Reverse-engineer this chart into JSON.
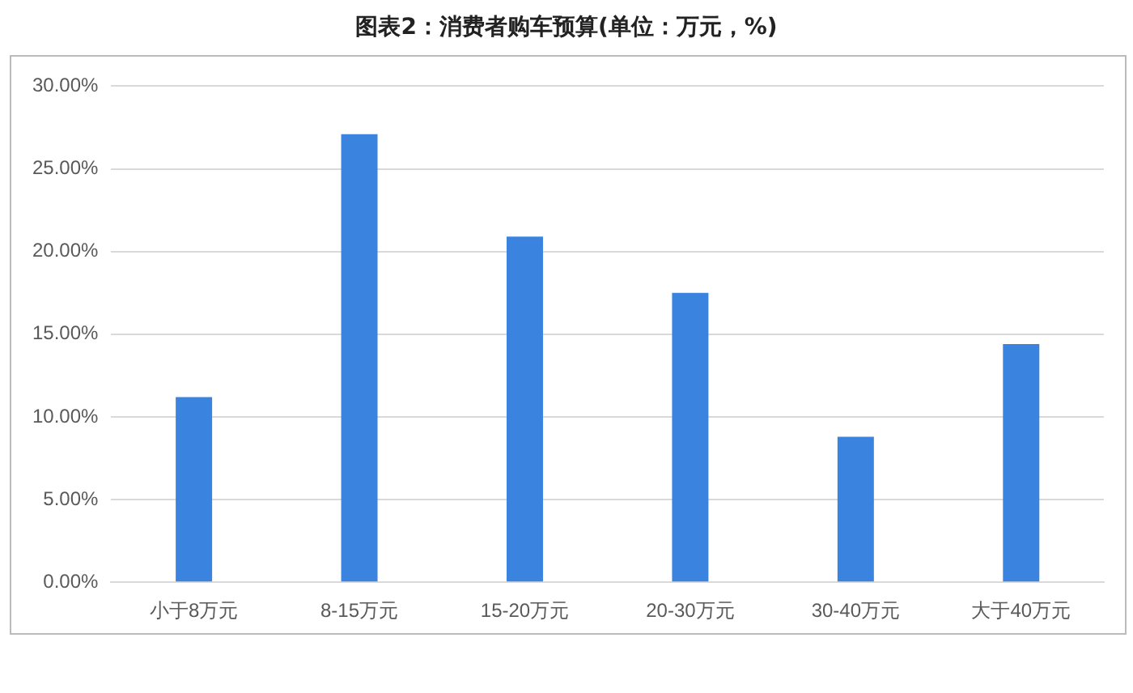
{
  "chart_data": {
    "type": "bar",
    "title": "图表2：消费者购车预算(单位：万元，%)",
    "categories": [
      "小于8万元",
      "8-15万元",
      "15-20万元",
      "20-30万元",
      "30-40万元",
      "大于40万元"
    ],
    "values": [
      11.2,
      27.1,
      20.9,
      17.5,
      8.8,
      14.4
    ],
    "color": "#3a84e0",
    "ylim": [
      0,
      30
    ],
    "yticks": [
      {
        "value": 0,
        "label": "0.00%"
      },
      {
        "value": 5,
        "label": "5.00%"
      },
      {
        "value": 10,
        "label": "10.00%"
      },
      {
        "value": 15,
        "label": "15.00%"
      },
      {
        "value": 20,
        "label": "20.00%"
      },
      {
        "value": 25,
        "label": "25.00%"
      },
      {
        "value": 30,
        "label": "30.00%"
      }
    ],
    "grid": "y"
  }
}
